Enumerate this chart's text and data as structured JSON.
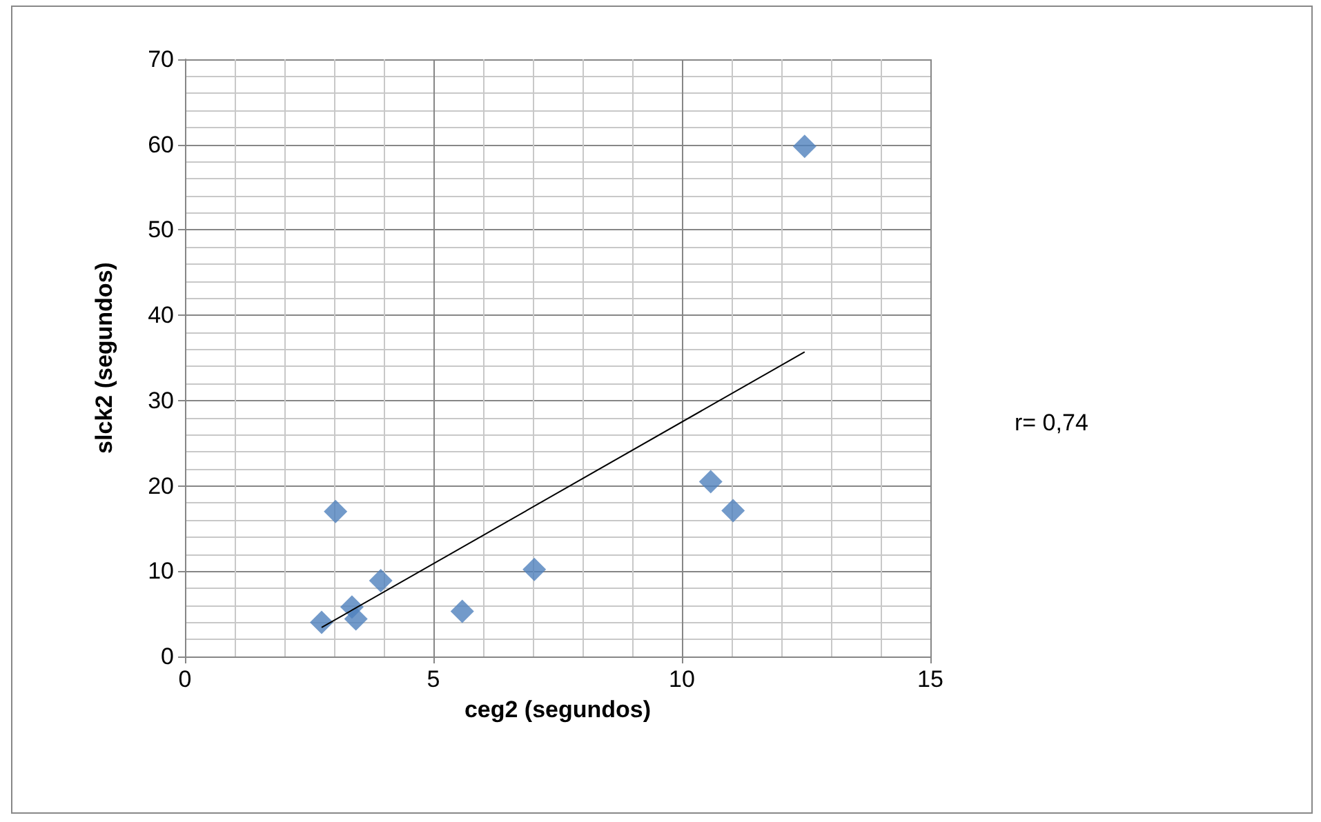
{
  "chart_data": {
    "type": "scatter",
    "xlabel": "ceg2 (segundos)",
    "ylabel": "slck2 (segundos)",
    "xlim": [
      0,
      15
    ],
    "xticks": [
      0,
      5,
      10,
      15
    ],
    "ylim": [
      0,
      70
    ],
    "yticks": [
      0,
      10,
      20,
      30,
      40,
      50,
      60,
      70
    ],
    "grid": true,
    "marker": "diamond",
    "series": [
      {
        "color": "#4f81bd",
        "x": [
          2.75,
          3.03,
          3.36,
          3.44,
          3.94,
          5.58,
          7.03,
          10.58,
          11.03,
          12.47
        ],
        "values": [
          4.0,
          17.0,
          5.8,
          4.4,
          8.9,
          5.3,
          10.2,
          20.5,
          17.1,
          59.8
        ]
      },
      {
        "type": "line",
        "color": "#000000",
        "marker": "none",
        "x": [
          2.75,
          12.47
        ],
        "values": [
          3.4,
          35.7
        ]
      }
    ],
    "annotations": [
      "r= 0,74"
    ]
  }
}
